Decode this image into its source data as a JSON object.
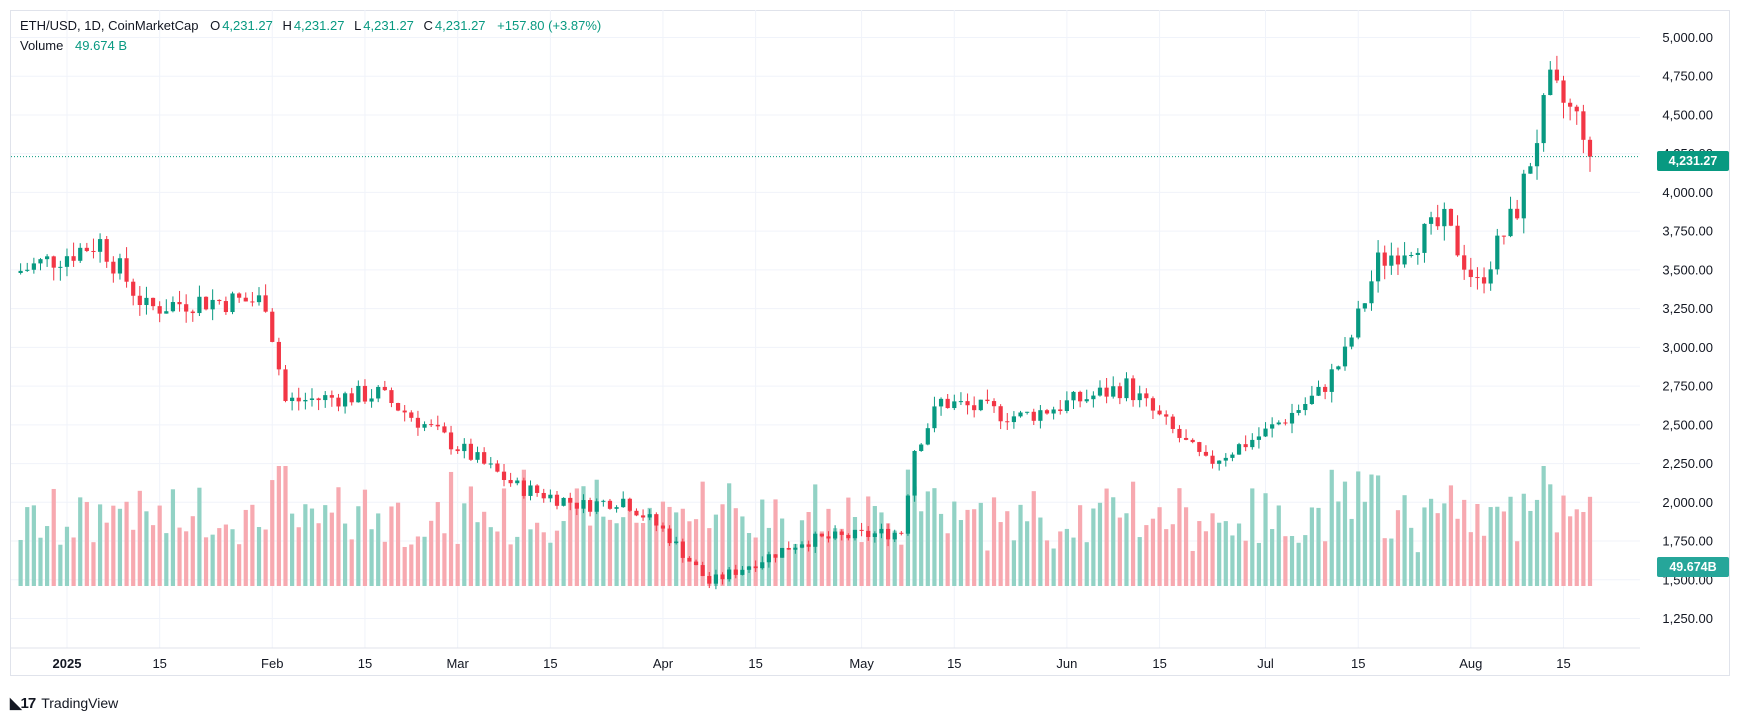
{
  "header": {
    "symbol_text": "ETH/USD, 1D, CoinMarketCap",
    "open_label": "O",
    "open_value": "4,231.27",
    "high_label": "H",
    "high_value": "4,231.27",
    "low_label": "L",
    "low_value": "4,231.27",
    "close_label": "C",
    "close_value": "4,231.27",
    "change_text": "+157.80 (+3.87%)",
    "volume_label": "Volume",
    "volume_value": "49.674 B"
  },
  "price_axis": {
    "ticks": [
      "5,000.00",
      "4,750.00",
      "4,500.00",
      "4,250.00",
      "4,000.00",
      "3,750.00",
      "3,500.00",
      "3,250.00",
      "3,000.00",
      "2,750.00",
      "2,500.00",
      "2,250.00",
      "2,000.00",
      "1,750.00",
      "1,500.00",
      "1,250.00"
    ]
  },
  "time_axis": {
    "labels": [
      "2025",
      "15",
      "Feb",
      "15",
      "Mar",
      "15",
      "Apr",
      "15",
      "May",
      "15",
      "Jun",
      "15",
      "Jul",
      "15",
      "Aug",
      "15"
    ]
  },
  "badges": {
    "last_price": "4,231.27",
    "last_volume": "49.674B"
  },
  "colors": {
    "up": "#089981",
    "down": "#f23645",
    "up_vol": "#92d2c5",
    "down_vol": "#f7a9b0",
    "grid": "#f0f3fa"
  },
  "footer": {
    "brand": "TradingView"
  },
  "chart_data": {
    "type": "candlestick",
    "title": "ETH/USD, 1D, CoinMarketCap",
    "price_range": [
      1100,
      5100
    ],
    "volume_range_pct": [
      0,
      100
    ],
    "x_range": [
      "2024-12-24",
      "2025-08-19"
    ],
    "last_price": 4231.27,
    "volume_current": "49.674B",
    "grid": true,
    "key_points": [
      {
        "date": "2024-12-24",
        "close": 3480
      },
      {
        "date": "2025-01-06",
        "close": 3680
      },
      {
        "date": "2025-01-13",
        "close": 3250
      },
      {
        "date": "2025-01-20",
        "close": 3300
      },
      {
        "date": "2025-01-31",
        "close": 3300
      },
      {
        "date": "2025-02-03",
        "close": 2650
      },
      {
        "date": "2025-02-17",
        "close": 2700
      },
      {
        "date": "2025-02-24",
        "close": 2500
      },
      {
        "date": "2025-03-10",
        "close": 2100
      },
      {
        "date": "2025-03-20",
        "close": 1980
      },
      {
        "date": "2025-03-26",
        "close": 2020
      },
      {
        "date": "2025-04-01",
        "close": 1820
      },
      {
        "date": "2025-04-08",
        "close": 1480
      },
      {
        "date": "2025-04-22",
        "close": 1750
      },
      {
        "date": "2025-05-07",
        "close": 1810
      },
      {
        "date": "2025-05-09",
        "close": 2350
      },
      {
        "date": "2025-05-13",
        "close": 2650
      },
      {
        "date": "2025-05-25",
        "close": 2550
      },
      {
        "date": "2025-06-10",
        "close": 2750
      },
      {
        "date": "2025-06-22",
        "close": 2250
      },
      {
        "date": "2025-07-01",
        "close": 2450
      },
      {
        "date": "2025-07-09",
        "close": 2700
      },
      {
        "date": "2025-07-13",
        "close": 2950
      },
      {
        "date": "2025-07-18",
        "close": 3550
      },
      {
        "date": "2025-07-28",
        "close": 3800
      },
      {
        "date": "2025-08-02",
        "close": 3400
      },
      {
        "date": "2025-08-08",
        "close": 3900
      },
      {
        "date": "2025-08-13",
        "close": 4680
      },
      {
        "date": "2025-08-18",
        "close": 4420
      },
      {
        "date": "2025-08-19",
        "close": 4231.27
      }
    ]
  }
}
